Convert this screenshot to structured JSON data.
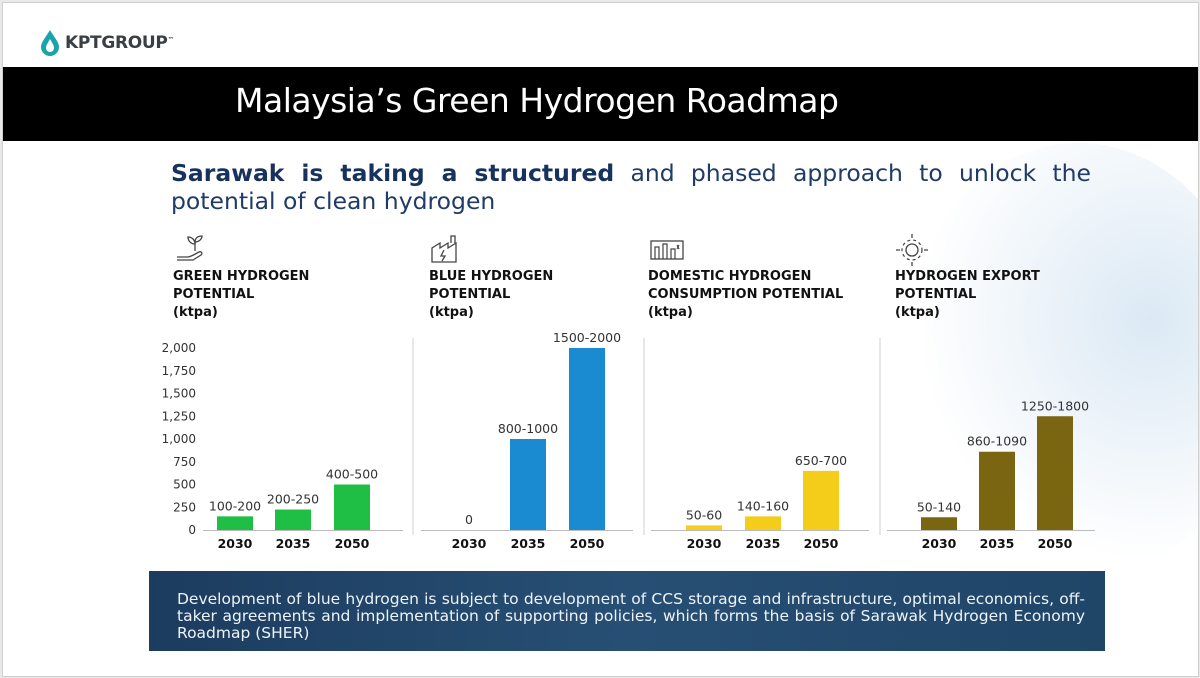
{
  "logo": {
    "name": "KPTGROUP",
    "tm": "™"
  },
  "title": "Malaysia’s Green Hydrogen Roadmap",
  "headline": {
    "bold": "Sarawak is taking a structured",
    "rest": " and phased approach to unlock the potential of clean hydrogen"
  },
  "panels": [
    {
      "line1": "GREEN HYDROGEN",
      "line2": "POTENTIAL",
      "line3": "(ktpa)",
      "icon": "sprout-hand-icon"
    },
    {
      "line1": "BLUE HYDROGEN",
      "line2": "POTENTIAL",
      "line3": "(ktpa)",
      "icon": "factory-icon"
    },
    {
      "line1": "DOMESTIC HYDROGEN",
      "line2": "CONSUMPTION POTENTIAL",
      "line3": "(ktpa)",
      "icon": "industry-icon"
    },
    {
      "line1": "HYDROGEN EXPORT",
      "line2": "POTENTIAL",
      "line3": "(ktpa)",
      "icon": "gear-arrows-icon"
    }
  ],
  "chart_data": {
    "type": "bar",
    "y_axis_label": "",
    "ylim": [
      0,
      2000
    ],
    "yticks": [
      "0",
      "250",
      "500",
      "750",
      "1,000",
      "1,250",
      "1,500",
      "1,750",
      "2,000"
    ],
    "charts": [
      {
        "name": "GREEN HYDROGEN POTENTIAL (ktpa)",
        "color": "#1fbf45",
        "categories": [
          "2030",
          "2035",
          "2050"
        ],
        "values": [
          150,
          225,
          500
        ],
        "labels": [
          "100-200",
          "200-250",
          "400-500"
        ]
      },
      {
        "name": "BLUE HYDROGEN POTENTIAL (ktpa)",
        "color": "#1a8bd1",
        "categories": [
          "2030",
          "2035",
          "2050"
        ],
        "values": [
          0,
          1000,
          2000
        ],
        "labels": [
          "0",
          "800-1000",
          "1500-2000"
        ]
      },
      {
        "name": "DOMESTIC HYDROGEN CONSUMPTION POTENTIAL (ktpa)",
        "color": "#f4cc1a",
        "categories": [
          "2030",
          "2035",
          "2050"
        ],
        "values": [
          50,
          150,
          650
        ],
        "labels": [
          "50-60",
          "140-160",
          "650-700"
        ]
      },
      {
        "name": "HYDROGEN EXPORT POTENTIAL (ktpa)",
        "color": "#7a6510",
        "categories": [
          "2030",
          "2035",
          "2050"
        ],
        "values": [
          140,
          860,
          1250
        ],
        "labels": [
          "50-140",
          "860-1090",
          "1250-1800"
        ]
      }
    ]
  },
  "footer": "Development of blue hydrogen is subject to development of CCS storage and infrastructure, optimal economics, off-taker agreements and implementation of supporting policies, which forms the basis of Sarawak Hydrogen Economy Roadmap (SHER)"
}
